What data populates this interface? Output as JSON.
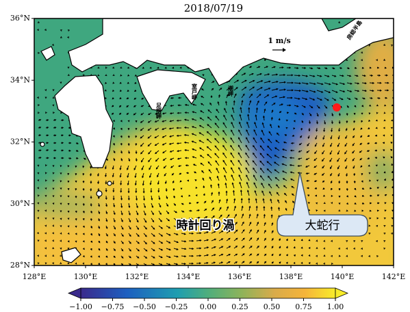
{
  "map": {
    "title": "2018/07/19",
    "xlim": [
      128,
      142
    ],
    "ylim": [
      28,
      36
    ],
    "xticks": [
      {
        "value": 128,
        "label": "128°E"
      },
      {
        "value": 130,
        "label": "130°E"
      },
      {
        "value": 132,
        "label": "132°E"
      },
      {
        "value": 134,
        "label": "134°E"
      },
      {
        "value": 136,
        "label": "136°E"
      },
      {
        "value": 138,
        "label": "138°E"
      },
      {
        "value": 140,
        "label": "140°E"
      },
      {
        "value": 142,
        "label": "142°E"
      }
    ],
    "yticks": [
      {
        "value": 28,
        "label": "28°N"
      },
      {
        "value": 30,
        "label": "30°N"
      },
      {
        "value": 32,
        "label": "32°N"
      },
      {
        "value": 34,
        "label": "34°N"
      },
      {
        "value": 36,
        "label": "36°N"
      }
    ],
    "colorbar": {
      "lim": [
        -1,
        1
      ],
      "ticks": [
        {
          "value": -1,
          "label": "−1.00"
        },
        {
          "value": -0.75,
          "label": "−0.75"
        },
        {
          "value": -0.5,
          "label": "−0.50"
        },
        {
          "value": -0.25,
          "label": "−0.25"
        },
        {
          "value": 0,
          "label": "0.00"
        },
        {
          "value": 0.25,
          "label": "0.25"
        },
        {
          "value": 0.5,
          "label": "0.50"
        },
        {
          "value": 0.75,
          "label": "0.75"
        },
        {
          "value": 1,
          "label": "1.00"
        }
      ]
    },
    "annotations": {
      "eddy": "時計回り渦",
      "meander": "大蛇行",
      "scale": "1 m/s"
    },
    "places": [
      "足摺岬",
      "室戸岬",
      "潮岬",
      "房総半島"
    ]
  }
}
